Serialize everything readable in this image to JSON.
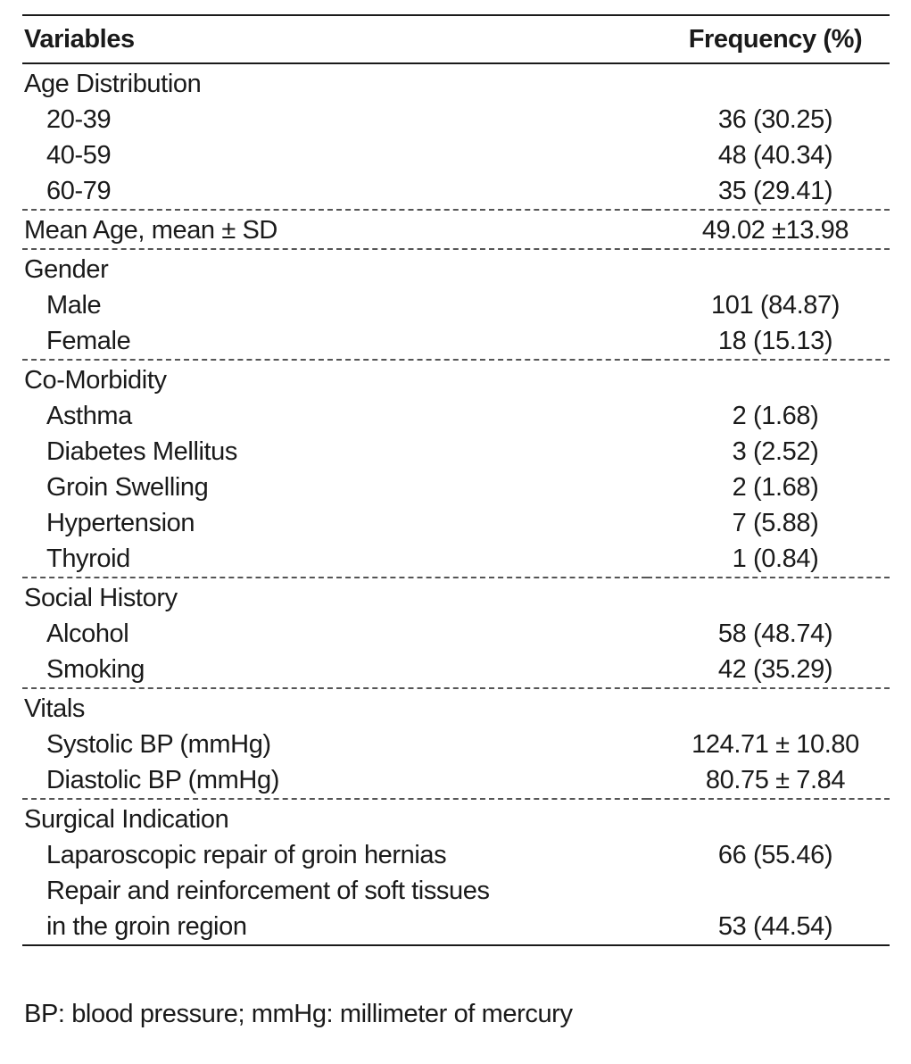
{
  "table": {
    "header": {
      "variables": "Variables",
      "frequency": "Frequency (%)"
    },
    "groups": [
      {
        "label": "Age Distribution",
        "value": "",
        "rows": [
          {
            "label": "20-39",
            "value": "36 (30.25)"
          },
          {
            "label": "40-59",
            "value": "48 (40.34)"
          },
          {
            "label": "60-79",
            "value": "35 (29.41)"
          }
        ]
      },
      {
        "label": "Mean Age, mean ± SD",
        "value": "49.02 ±13.98",
        "rows": []
      },
      {
        "label": "Gender",
        "value": "",
        "rows": [
          {
            "label": "Male",
            "value": "101 (84.87)"
          },
          {
            "label": "Female",
            "value": "18 (15.13)"
          }
        ]
      },
      {
        "label": "Co-Morbidity",
        "value": "",
        "rows": [
          {
            "label": "Asthma",
            "value": "2 (1.68)"
          },
          {
            "label": "Diabetes Mellitus",
            "value": "3 (2.52)"
          },
          {
            "label": "Groin Swelling",
            "value": "2 (1.68)"
          },
          {
            "label": "Hypertension",
            "value": "7 (5.88)"
          },
          {
            "label": "Thyroid",
            "value": "1 (0.84)"
          }
        ]
      },
      {
        "label": "Social History",
        "value": "",
        "rows": [
          {
            "label": "Alcohol",
            "value": "58 (48.74)"
          },
          {
            "label": "Smoking",
            "value": "42 (35.29)"
          }
        ]
      },
      {
        "label": "Vitals",
        "value": "",
        "rows": [
          {
            "label": "Systolic BP (mmHg)",
            "value": "124.71 ± 10.80"
          },
          {
            "label": "Diastolic BP (mmHg)",
            "value": "80.75 ± 7.84"
          }
        ]
      },
      {
        "label": "Surgical Indication",
        "value": "",
        "rows": [
          {
            "label": "Laparoscopic repair of groin hernias",
            "value": "66 (55.46)"
          },
          {
            "label": "Repair and reinforcement of soft tissues",
            "value": ""
          },
          {
            "label": "in the groin region",
            "value": "53 (44.54)"
          }
        ]
      }
    ]
  },
  "footnote": "BP: blood pressure; mmHg: millimeter of mercury"
}
